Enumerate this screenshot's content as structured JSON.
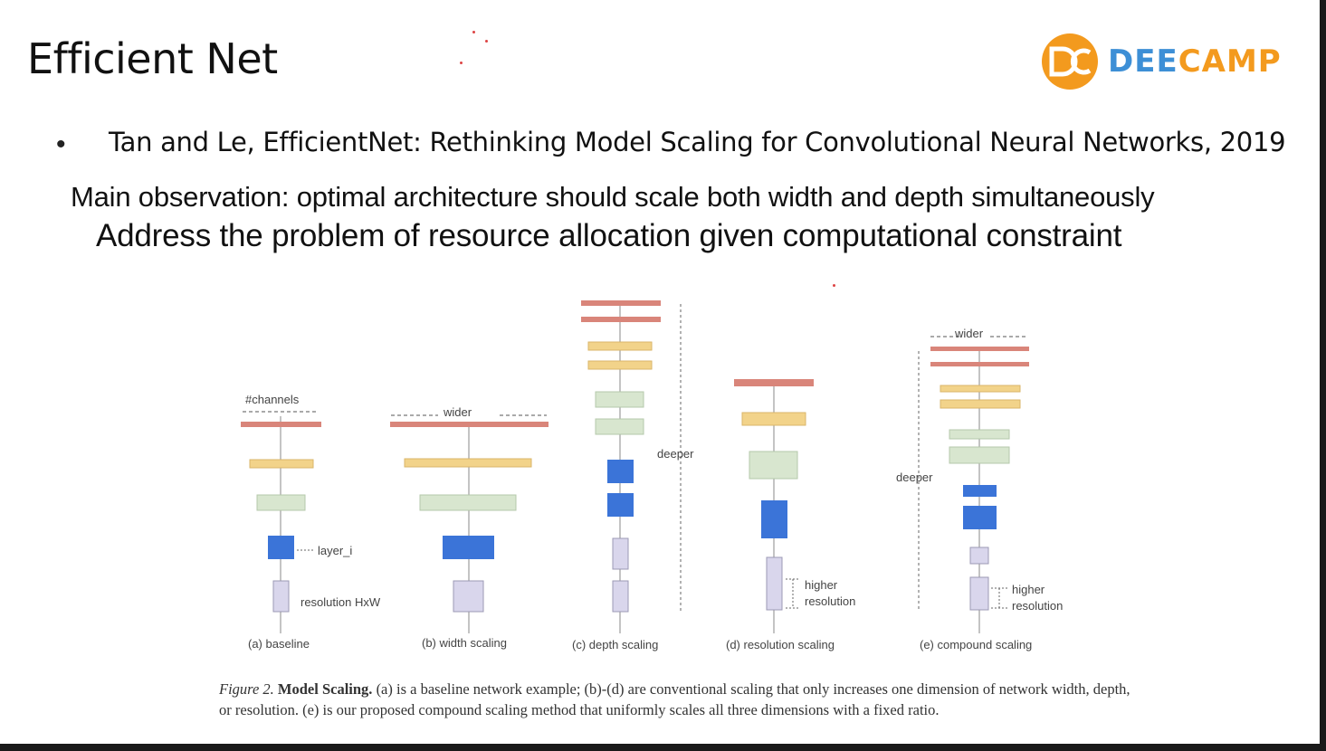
{
  "slide": {
    "title": "Efficient Net",
    "logo": {
      "text_part1": "DEE",
      "text_part2": "CAMP",
      "mark": "DC",
      "orange": "#f39a1e",
      "blue": "#3d8fd6"
    },
    "bullet": "Tan and Le, EfficientNet: Rethinking Model Scaling for Convolutional Neural Networks, 2019",
    "observation": "Main observation:  optimal architecture should scale both width and depth simultaneously",
    "address": "Address the problem of resource allocation given computational constraint"
  },
  "figure": {
    "labels": {
      "channels": "#channels",
      "wider_b": "wider",
      "layer_i": "layer_i",
      "resolution_hxw": "resolution HxW",
      "deeper_c": "deeper",
      "higher_d1": "higher",
      "resolution_d2": "resolution",
      "wider_e": "wider",
      "deeper_e": "deeper",
      "higher_e1": "higher",
      "resolution_e2": "resolution"
    },
    "subcaptions": [
      "(a) baseline",
      "(b) width scaling",
      "(c) depth scaling",
      "(d) resolution scaling",
      "(e) compound scaling"
    ],
    "colors": {
      "red": "#d9857a",
      "yellow": "#f2d38a",
      "green": "#d8e6cf",
      "blue": "#3b74d8",
      "lavender": "#d9d6ec"
    },
    "caption": {
      "fig": "Figure 2.",
      "bold": "Model Scaling.",
      "text": "(a) is a baseline network example; (b)-(d) are conventional scaling that only increases one dimension of network width, depth, or resolution. (e) is our proposed compound scaling method that uniformly scales all three dimensions with a fixed ratio."
    }
  }
}
